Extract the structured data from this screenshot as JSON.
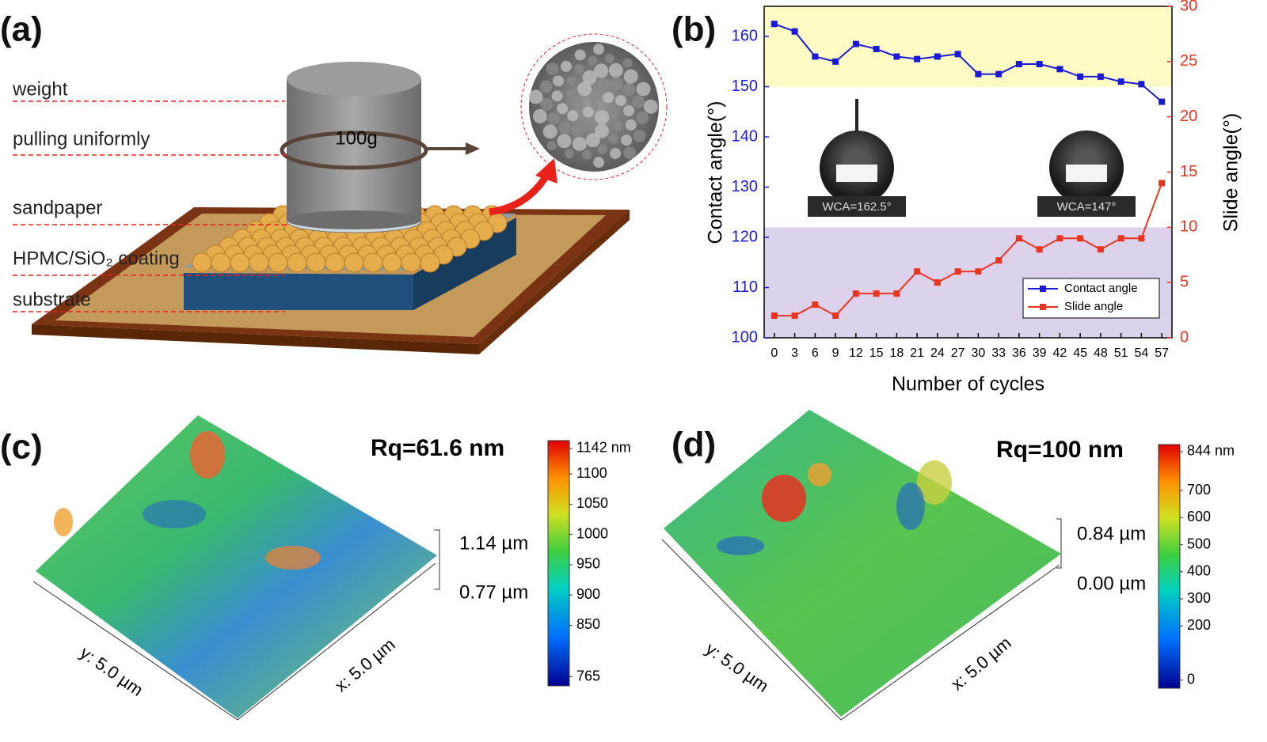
{
  "panel_labels": [
    "(a)",
    "(b)",
    "(c)",
    "(d)"
  ],
  "schematic": {
    "weight_label": "100g",
    "annotations": [
      "weight",
      "pulling uniformly",
      "sandpaper",
      "HPMC/SiO₂ coating",
      "substrate"
    ]
  },
  "chart_data": {
    "type": "line",
    "x_label": "Number of cycles",
    "y_label": "Contact angle(°)",
    "y2_label": "Slide angle(°)",
    "x": [
      0,
      3,
      6,
      9,
      12,
      15,
      18,
      21,
      24,
      27,
      30,
      33,
      36,
      39,
      42,
      45,
      48,
      51,
      54,
      57
    ],
    "series": [
      {
        "name": "Contact angle",
        "color": "#1a1ad6",
        "values": [
          162.5,
          161,
          156,
          155,
          158.5,
          157.5,
          156,
          155.5,
          156,
          156.5,
          152.5,
          152.5,
          154.5,
          154.5,
          153.5,
          152,
          152,
          151,
          150.5,
          147
        ]
      },
      {
        "name": "Slide angle",
        "color": "#e8351f",
        "axis": "y2",
        "values": [
          2,
          2,
          3,
          2,
          4,
          4,
          4,
          6,
          5,
          6,
          6,
          7,
          9,
          8,
          9,
          9,
          8,
          9,
          9,
          14
        ]
      }
    ],
    "xlim": [
      -1.5,
      58.5
    ],
    "xticks": [
      0,
      3,
      6,
      9,
      12,
      15,
      18,
      21,
      24,
      27,
      30,
      33,
      36,
      39,
      42,
      45,
      48,
      51,
      54,
      57
    ],
    "ylim": [
      100,
      166
    ],
    "yticks": [
      100,
      110,
      120,
      130,
      140,
      150,
      160
    ],
    "y2lim": [
      0,
      30
    ],
    "y2ticks": [
      0,
      5,
      10,
      15,
      20,
      25,
      30
    ],
    "bands": [
      {
        "axis": "y",
        "from": 150,
        "to": 166,
        "color": "#fdfbc4"
      },
      {
        "axis": "y2",
        "from": 0,
        "to": 10,
        "color": "#ddd2ec"
      }
    ],
    "insets": [
      "WCA=162.5°",
      "WCA=147°"
    ],
    "legend": "lower right"
  },
  "afm": [
    {
      "rq": "Rq=61.6 nm",
      "z_labels": [
        "1.14 µm",
        "0.77 µm"
      ],
      "x_label": "x: 5.0 µm",
      "y_label": "y: 5.0 µm",
      "colorbar": {
        "range": [
          750,
          1155
        ],
        "ticks": [
          {
            "value": 1142,
            "label": "1142 nm"
          },
          1100,
          1050,
          1000,
          950,
          900,
          850,
          765
        ]
      }
    },
    {
      "rq": "Rq=100 nm",
      "z_labels": [
        "0.84 µm",
        "0.00 µm"
      ],
      "x_label": "x: 5.0 µm",
      "y_label": "y: 5.0 µm",
      "colorbar": {
        "range": [
          -30,
          870
        ],
        "ticks": [
          {
            "value": 844,
            "label": "844 nm"
          },
          700,
          600,
          500,
          400,
          300,
          200,
          0
        ]
      }
    }
  ]
}
